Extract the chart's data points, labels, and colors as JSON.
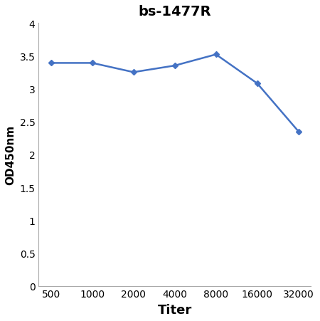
{
  "title": "bs-1477R",
  "xlabel": "Titer",
  "ylabel": "OD450nm",
  "y_values": [
    3.39,
    3.39,
    3.25,
    3.35,
    3.52,
    3.08,
    2.35
  ],
  "x_positions": [
    0,
    1,
    2,
    3,
    4,
    5,
    6
  ],
  "x_labels": [
    "500",
    "1000",
    "2000",
    "4000",
    "8000",
    "16000",
    "32000"
  ],
  "line_color": "#4472C4",
  "marker": "D",
  "marker_size": 4,
  "line_width": 1.8,
  "ylim": [
    0,
    4.0
  ],
  "yticks": [
    0,
    0.5,
    1.0,
    1.5,
    2.0,
    2.5,
    3.0,
    3.5,
    4.0
  ],
  "title_fontsize": 14,
  "xlabel_fontsize": 13,
  "ylabel_fontsize": 11,
  "tick_labelsize": 10,
  "background_color": "#ffffff",
  "spine_color": "#aaaaaa"
}
